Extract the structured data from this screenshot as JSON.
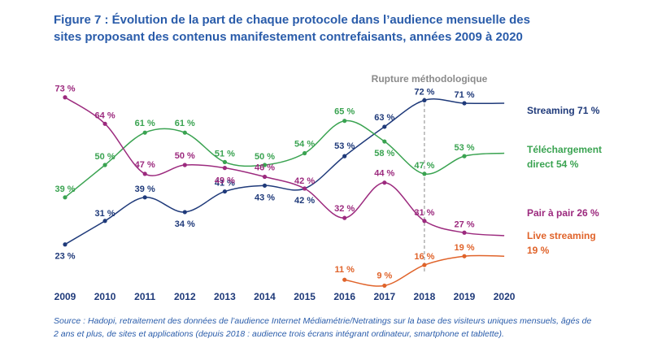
{
  "title_lines": [
    "Figure 7 : Évolution de la part de chaque protocole dans l’audience mensuelle des",
    "sites proposant des contenus manifestement contrefaisants, années 2009 à 2020"
  ],
  "source_lines": [
    "Source : Hadopi, retraitement des données de l’audience Internet Médiamétrie/Netratings sur la base des visiteurs uniques mensuels, âgés de",
    "2 ans et plus, de sites et applications (depuis 2018 : audience trois écrans intégrant ordinateur, smartphone et tablette)."
  ],
  "chart_data": {
    "type": "line",
    "x": [
      2009,
      2010,
      2011,
      2012,
      2013,
      2014,
      2015,
      2016,
      2017,
      2018,
      2019,
      2020
    ],
    "ylim": [
      0,
      80
    ],
    "annotation": {
      "text": "Rupture méthodologique",
      "x": 2018
    },
    "series": [
      {
        "name": "Streaming 71 %",
        "label_lines": [
          "Streaming 71 %"
        ],
        "color": "#1f3a7a",
        "values": [
          23,
          31,
          39,
          34,
          41,
          43,
          42,
          53,
          63,
          72,
          71,
          71
        ],
        "labels": [
          "23 %",
          "31 %",
          "39 %",
          "34 %",
          "41 %",
          "43 %",
          "42 %",
          "53 %",
          "63 %",
          "72 %",
          "71 %",
          null
        ]
      },
      {
        "name": "Téléchargement direct 54 %",
        "label_lines": [
          "Téléchargement",
          "direct 54 %"
        ],
        "color": "#3aa351",
        "values": [
          39,
          50,
          61,
          61,
          51,
          50,
          54,
          65,
          58,
          47,
          53,
          54
        ],
        "labels": [
          "39 %",
          "50 %",
          "61 %",
          "61 %",
          "51 %",
          "50 %",
          "54 %",
          "65 %",
          "58 %",
          "47 %",
          "53 %",
          null
        ]
      },
      {
        "name": "Pair à pair 26 %",
        "label_lines": [
          "Pair à pair 26 %"
        ],
        "color": "#9c2a7e",
        "values": [
          73,
          64,
          47,
          50,
          49,
          46,
          42,
          32,
          44,
          31,
          27,
          26
        ],
        "labels": [
          "73 %",
          "64 %",
          "47 %",
          "50 %",
          "49 %",
          "46 %",
          "42 %",
          "32 %",
          "44 %",
          "31 %",
          "27 %",
          null
        ]
      },
      {
        "name": "Live streaming 19 %",
        "label_lines": [
          "Live streaming",
          "19 %"
        ],
        "color": "#e0632a",
        "values": [
          null,
          null,
          null,
          null,
          null,
          null,
          null,
          11,
          9,
          16,
          19,
          19
        ],
        "labels": [
          null,
          null,
          null,
          null,
          null,
          null,
          null,
          "11 %",
          "9 %",
          "16 %",
          "19 %",
          null
        ]
      }
    ]
  }
}
